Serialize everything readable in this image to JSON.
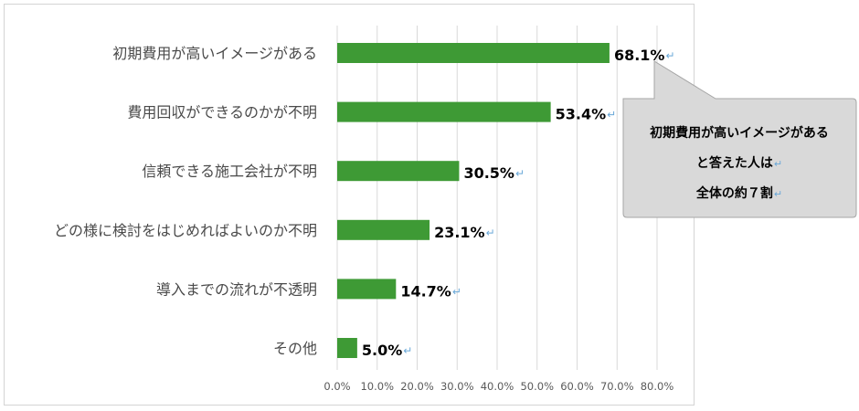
{
  "chart_data": {
    "type": "bar",
    "orientation": "horizontal",
    "categories": [
      "初期費用が高いイメージがある",
      "費用回収ができるのかが不明",
      "信頼できる施工会社が不明",
      "どの様に検討をはじめればよいのか不明",
      "導入までの流れが不透明",
      "その他"
    ],
    "values": [
      68.1,
      53.4,
      30.5,
      23.1,
      14.7,
      5.0
    ],
    "data_labels": [
      "68.1%",
      "53.4%",
      "30.5%",
      "23.1%",
      "14.7%",
      "5.0%"
    ],
    "xlim": [
      0,
      80
    ],
    "xticks": [
      "0.0%",
      "10.0%",
      "20.0%",
      "30.0%",
      "40.0%",
      "50.0%",
      "60.0%",
      "70.0%",
      "80.0%"
    ],
    "grid": true,
    "bar_color": "#3e9a35",
    "legend": "none"
  },
  "callout": {
    "lines": [
      "初期費用が高いイメージがある",
      "と答えた人は",
      "全体の約７割"
    ]
  },
  "paragraph_mark": "↵",
  "colors": {
    "bar": "#3e9a35",
    "callout_fill": "#d9d9d9",
    "callout_stroke": "#a6a6a6",
    "paragraph_mark": "#6aa8d8"
  }
}
